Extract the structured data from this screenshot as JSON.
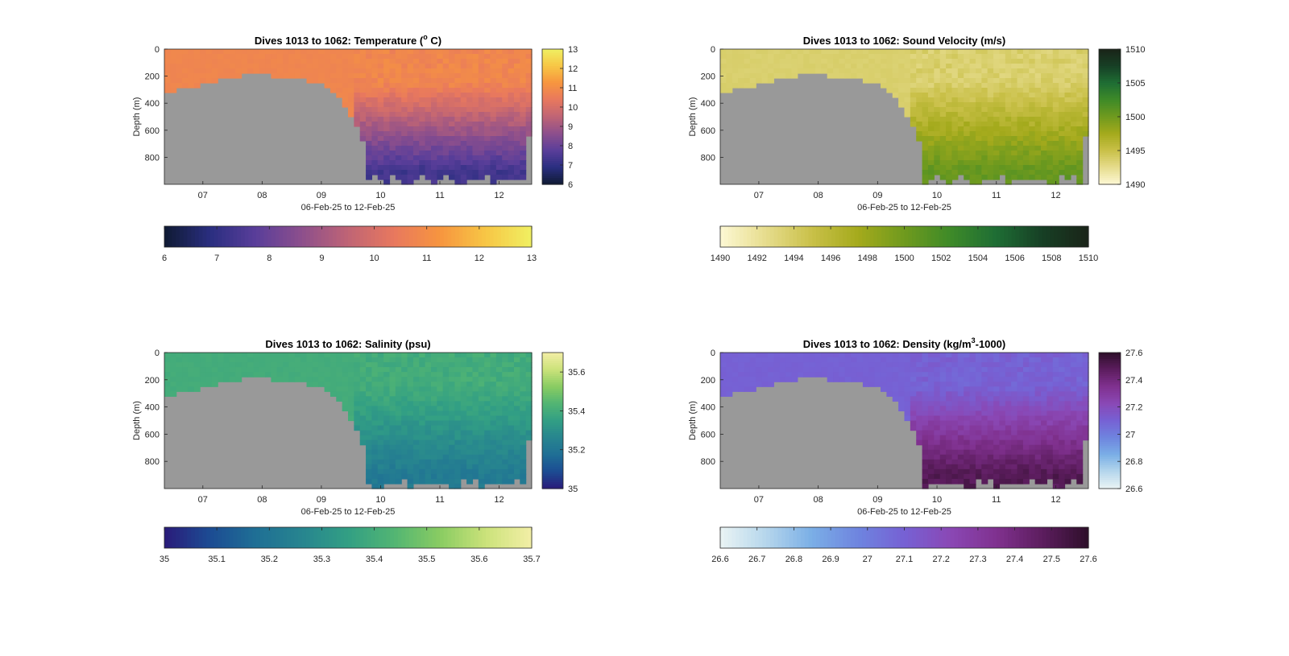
{
  "panels": [
    {
      "title_prefix": "Dives 1013 to 1062: Temperature (",
      "title_sup": "o",
      "title_suffix": " C)",
      "ylabel": "Depth (m)",
      "xlabel": "06-Feb-25 to 12-Feb-25",
      "xticks": [
        "07",
        "08",
        "09",
        "10",
        "11",
        "12"
      ],
      "yticks": [
        "0",
        "200",
        "400",
        "600",
        "800"
      ],
      "cbar_ticks": [
        "13",
        "12",
        "11",
        "10",
        "9",
        "8",
        "7",
        "6"
      ],
      "hbar_ticks": [
        "6",
        "7",
        "8",
        "9",
        "10",
        "11",
        "12",
        "13"
      ]
    },
    {
      "title_prefix": "Dives 1013 to 1062: Sound Velocity (m/s)",
      "title_sup": "",
      "title_suffix": "",
      "ylabel": "Depth (m)",
      "xlabel": "06-Feb-25 to 12-Feb-25",
      "xticks": [
        "07",
        "08",
        "09",
        "10",
        "11",
        "12"
      ],
      "yticks": [
        "0",
        "200",
        "400",
        "600",
        "800"
      ],
      "cbar_ticks": [
        "1510",
        "1505",
        "1500",
        "1495",
        "1490"
      ],
      "hbar_ticks": [
        "1490",
        "1492",
        "1494",
        "1496",
        "1498",
        "1500",
        "1502",
        "1504",
        "1506",
        "1508",
        "1510"
      ]
    },
    {
      "title_prefix": "Dives 1013 to 1062: Salinity (psu)",
      "title_sup": "",
      "title_suffix": "",
      "ylabel": "Depth (m)",
      "xlabel": "06-Feb-25 to 12-Feb-25",
      "xticks": [
        "07",
        "08",
        "09",
        "10",
        "11",
        "12"
      ],
      "yticks": [
        "0",
        "200",
        "400",
        "600",
        "800"
      ],
      "cbar_ticks": [
        "35.6",
        "35.4",
        "35.2",
        "35"
      ],
      "hbar_ticks": [
        "35",
        "35.1",
        "35.2",
        "35.3",
        "35.4",
        "35.5",
        "35.6",
        "35.7"
      ]
    },
    {
      "title_prefix": "Dives 1013 to 1062: Density (kg/m",
      "title_sup": "3",
      "title_suffix": "-1000)",
      "ylabel": "Depth (m)",
      "xlabel": "06-Feb-25 to 12-Feb-25",
      "xticks": [
        "07",
        "08",
        "09",
        "10",
        "11",
        "12"
      ],
      "yticks": [
        "0",
        "200",
        "400",
        "600",
        "800"
      ],
      "cbar_ticks": [
        "27.6",
        "27.4",
        "27.2",
        "27",
        "26.8",
        "26.6"
      ],
      "hbar_ticks": [
        "26.6",
        "26.7",
        "26.8",
        "26.9",
        "27",
        "27.1",
        "27.2",
        "27.3",
        "27.4",
        "27.5",
        "27.6"
      ]
    }
  ],
  "chart_data": [
    {
      "type": "heatmap",
      "variable": "temperature",
      "x_range_days": [
        6.35,
        12.55
      ],
      "ylim": [
        0,
        1000
      ],
      "clim": [
        6,
        13
      ],
      "cbar_ticks": [
        6,
        7,
        8,
        9,
        10,
        11,
        12,
        13
      ],
      "surface_value": 10.8,
      "deep_value": 7.3,
      "colormap": [
        "#0f1a33",
        "#2a2e80",
        "#5a3e9a",
        "#8d4f8c",
        "#bf6475",
        "#e8785e",
        "#f7953f",
        "#f7c645",
        "#f0f062"
      ],
      "nodata_color": "#999999"
    },
    {
      "type": "heatmap",
      "variable": "sound_velocity",
      "x_range_days": [
        6.35,
        12.55
      ],
      "ylim": [
        0,
        1000
      ],
      "clim": [
        1490,
        1510
      ],
      "cbar_ticks": [
        1490,
        1492,
        1494,
        1496,
        1498,
        1500,
        1502,
        1504,
        1506,
        1508,
        1510
      ],
      "surface_value": 1493.6,
      "deep_value": 1500.5,
      "colormap": [
        "#fdf8d4",
        "#e6dc8c",
        "#c9c048",
        "#a4aa1c",
        "#6f9a1e",
        "#3e8a28",
        "#1e6d34",
        "#173f25",
        "#1a2418"
      ],
      "nodata_color": "#999999"
    },
    {
      "type": "heatmap",
      "variable": "salinity",
      "x_range_days": [
        6.35,
        12.55
      ],
      "ylim": [
        0,
        1000
      ],
      "clim": [
        35,
        35.7
      ],
      "cbar_ticks": [
        35,
        35.1,
        35.2,
        35.3,
        35.4,
        35.5,
        35.6,
        35.7
      ],
      "surface_value": 35.4,
      "deep_value": 35.22,
      "colormap": [
        "#2a1b7a",
        "#1c4c93",
        "#1f6f95",
        "#27858f",
        "#329f84",
        "#52b573",
        "#89cc62",
        "#cbe27a",
        "#f3eea6"
      ],
      "nodata_color": "#999999"
    },
    {
      "type": "heatmap",
      "variable": "density",
      "x_range_days": [
        6.35,
        12.55
      ],
      "ylim": [
        0,
        1000
      ],
      "clim": [
        26.6,
        27.6
      ],
      "cbar_ticks": [
        26.6,
        26.7,
        26.8,
        26.9,
        27,
        27.1,
        27.2,
        27.3,
        27.4,
        27.5,
        27.6
      ],
      "surface_value": 27.1,
      "deep_value": 27.5,
      "colormap": [
        "#eaf4f4",
        "#b5d6ec",
        "#7aaee6",
        "#6e84df",
        "#7661d4",
        "#8a48b5",
        "#80318f",
        "#5c1d5e",
        "#2e0f2a"
      ],
      "nodata_color": "#999999"
    }
  ]
}
